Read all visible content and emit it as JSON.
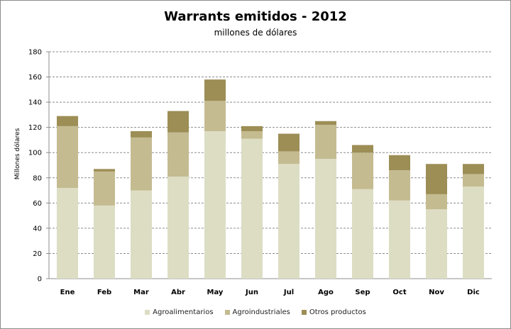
{
  "chart_data": {
    "type": "bar",
    "stacked": true,
    "title": "Warrants emitidos  - 2012",
    "subtitle": "millones de dólares",
    "xlabel": "",
    "ylabel": "Millones dólares",
    "ylim": [
      0,
      180
    ],
    "yticks": [
      0,
      20,
      40,
      60,
      80,
      100,
      120,
      140,
      160,
      180
    ],
    "grid": true,
    "legend_position": "bottom",
    "categories": [
      "Ene",
      "Feb",
      "Mar",
      "Abr",
      "May",
      "Jun",
      "Jul",
      "Ago",
      "Sep",
      "Oct",
      "Nov",
      "Dic"
    ],
    "series": [
      {
        "name": "Agroalimentarios",
        "color": "#ddddc4",
        "values": [
          72,
          58,
          70,
          81,
          117,
          111,
          91,
          95,
          71,
          62,
          55,
          73
        ]
      },
      {
        "name": "Agroindustriales",
        "color": "#c4bb91",
        "values": [
          49,
          27,
          42,
          35,
          24,
          6,
          10,
          27,
          29,
          24,
          12,
          10
        ]
      },
      {
        "name": "Otros productos",
        "color": "#9c8e55",
        "values": [
          8,
          2,
          5,
          17,
          17,
          4,
          14,
          3,
          6,
          12,
          24,
          8
        ]
      }
    ]
  }
}
